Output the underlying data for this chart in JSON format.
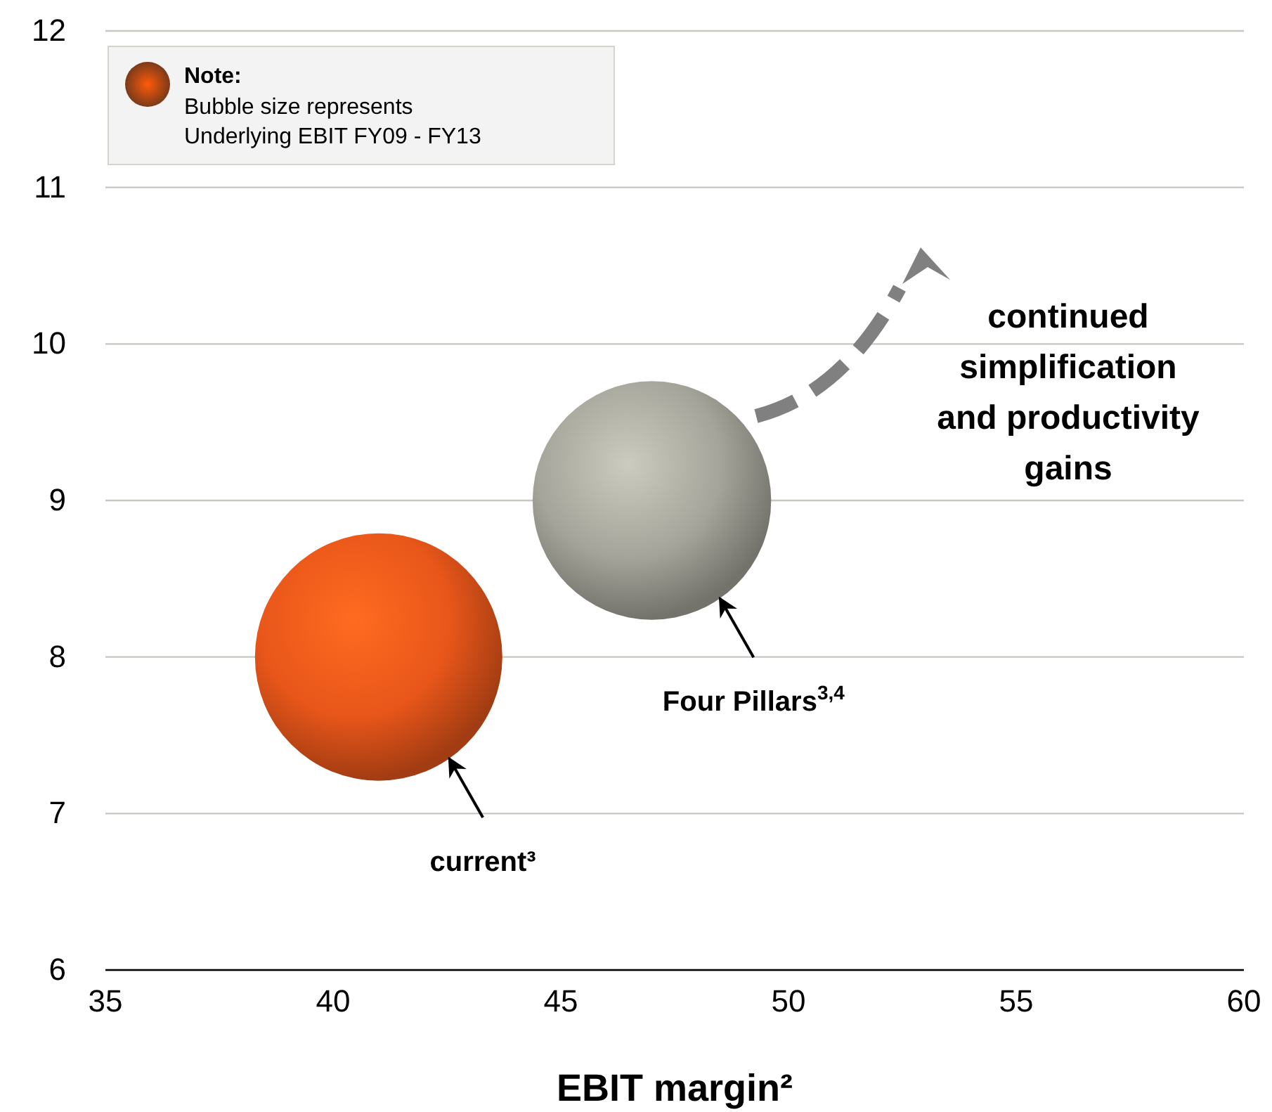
{
  "chart_data": {
    "type": "bubble",
    "xlabel": "EBIT margin²",
    "x": [
      41,
      47
    ],
    "values": [
      8,
      9
    ],
    "sizes": [
      1,
      0.93
    ],
    "colors": [
      "#e8561a",
      "#a4a49a"
    ],
    "xlim": [
      35,
      60
    ],
    "xticks": [
      35,
      40,
      45,
      50,
      55,
      60
    ],
    "ylim": [
      6,
      12
    ],
    "yticks": [
      6,
      7,
      8,
      9,
      10,
      11,
      12
    ],
    "grid": "y",
    "annotations": [
      {
        "text": "Note:"
      },
      {
        "text": "Bubble size represents\nUnderlying EBIT FY09 - FY13"
      },
      {
        "text": "current³"
      },
      {
        "text": "Four Pillars$^{3,4}$"
      },
      {
        "text": "continued\nsimplification\nand productivity\ngains"
      }
    ]
  }
}
